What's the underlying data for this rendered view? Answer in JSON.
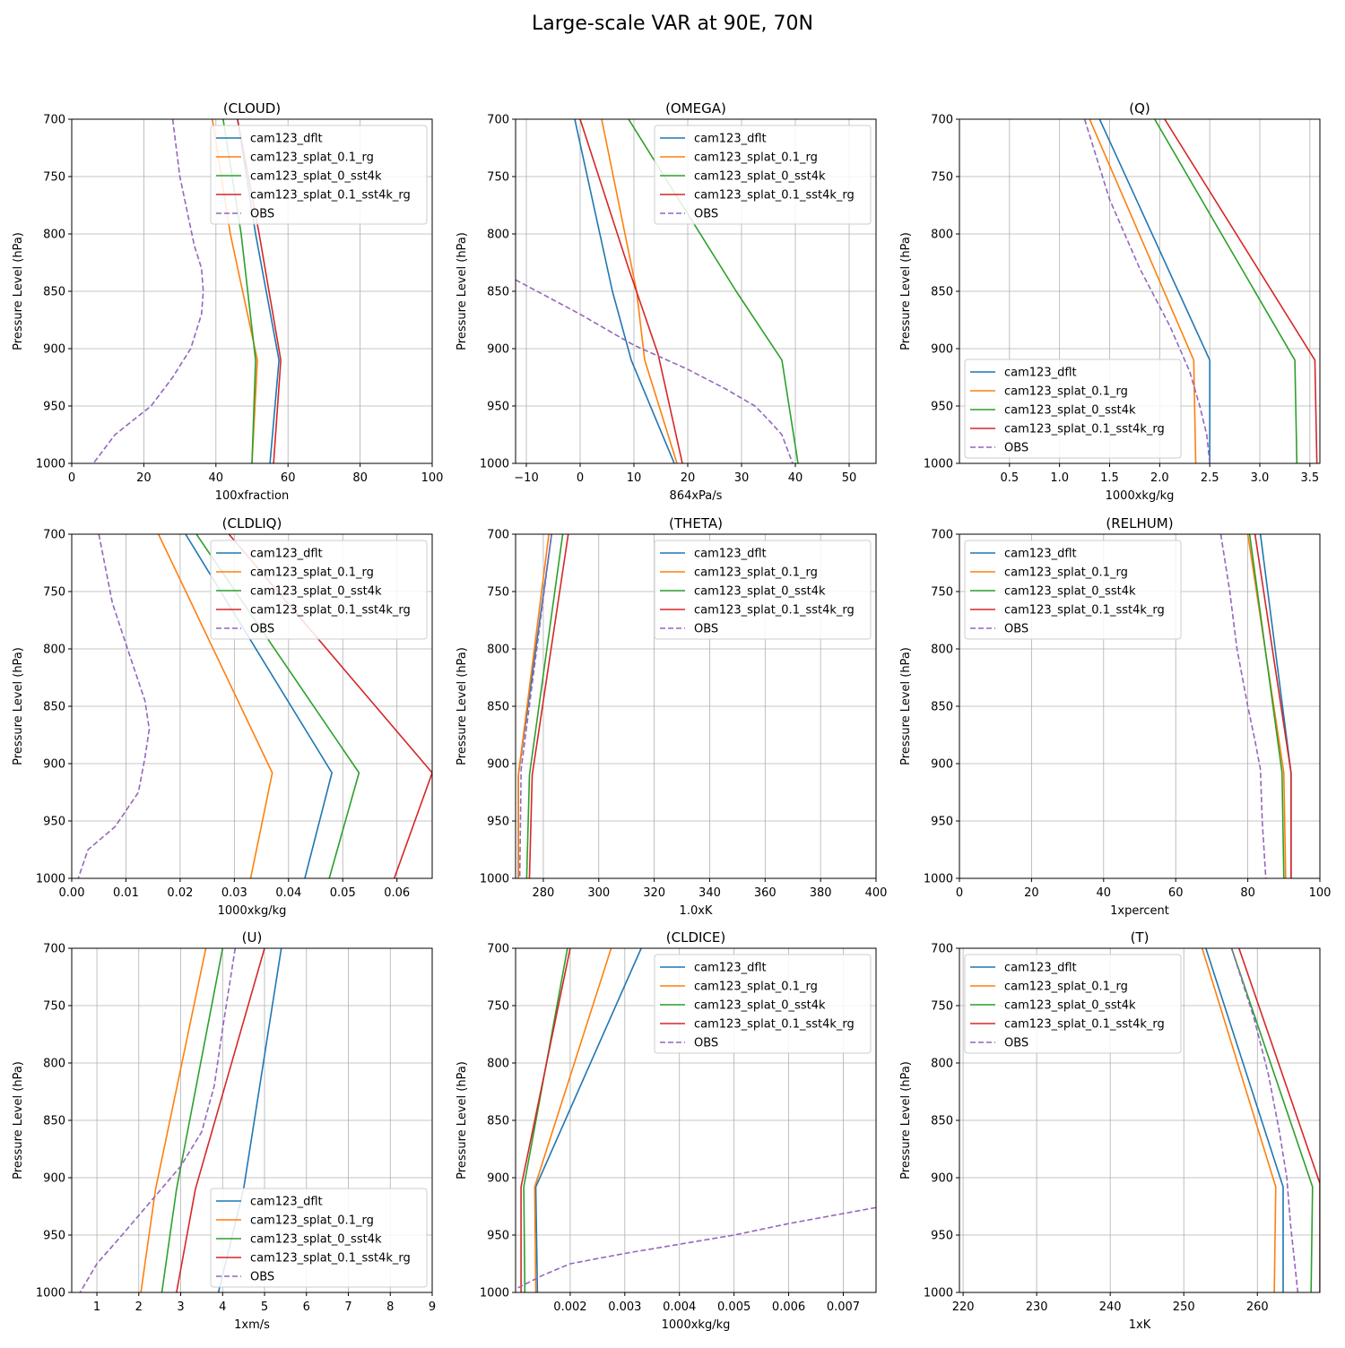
{
  "figure_title": "Large-scale VAR at 90E, 70N",
  "legend_labels": [
    "cam123_dflt",
    "cam123_splat_0.1_rg",
    "cam123_splat_0_sst4k",
    "cam123_splat_0.1_sst4k_rg",
    "OBS"
  ],
  "colors": {
    "cam123_dflt": "#1f77b4",
    "cam123_splat_0.1_rg": "#ff7f0e",
    "cam123_splat_0_sst4k": "#2ca02c",
    "cam123_splat_0.1_sst4k_rg": "#d62728",
    "OBS": "#9467bd",
    "grid": "#b0b0b0"
  },
  "chart_data": [
    {
      "type": "line",
      "title": "(CLOUD)",
      "xlabel": "100xfraction",
      "ylabel": "Pressure Level (hPa)",
      "xlim": [
        0,
        100
      ],
      "ylim": [
        1000,
        700
      ],
      "xticks": [
        0,
        20,
        40,
        60,
        80,
        100
      ],
      "xtick_labels": [
        "0",
        "20",
        "40",
        "60",
        "80",
        "100"
      ],
      "yticks": [
        700,
        750,
        800,
        850,
        900,
        950,
        1000
      ],
      "legend": "top-right",
      "series": [
        {
          "name": "cam123_dflt",
          "x": [
            46,
            51,
            57.5,
            55
          ],
          "y": [
            700,
            800,
            910,
            1000
          ]
        },
        {
          "name": "cam123_splat_0.1_rg",
          "x": [
            39,
            44,
            51.5,
            50
          ],
          "y": [
            700,
            800,
            910,
            1000
          ]
        },
        {
          "name": "cam123_splat_0_sst4k",
          "x": [
            42,
            47,
            51,
            50
          ],
          "y": [
            700,
            800,
            910,
            1000
          ]
        },
        {
          "name": "cam123_splat_0.1_sst4k_rg",
          "x": [
            46,
            52,
            58,
            56
          ],
          "y": [
            700,
            800,
            910,
            1000
          ]
        },
        {
          "name": "OBS",
          "x": [
            28,
            30,
            32,
            34,
            36,
            36.5,
            36,
            33,
            28,
            22,
            12,
            6
          ],
          "y": [
            700,
            750,
            780,
            810,
            830,
            850,
            870,
            900,
            925,
            950,
            975,
            1000
          ]
        }
      ]
    },
    {
      "type": "line",
      "title": "(OMEGA)",
      "xlabel": "864xPa/s",
      "ylabel": "Pressure Level (hPa)",
      "xlim": [
        -12,
        55
      ],
      "ylim": [
        1000,
        700
      ],
      "xticks": [
        -10,
        0,
        10,
        20,
        30,
        40,
        50
      ],
      "xtick_labels": [
        "−10",
        "0",
        "10",
        "20",
        "30",
        "40",
        "50"
      ],
      "yticks": [
        700,
        750,
        800,
        850,
        900,
        950,
        1000
      ],
      "legend": "top-right",
      "series": [
        {
          "name": "cam123_dflt",
          "x": [
            -1,
            6,
            9.5,
            17.5
          ],
          "y": [
            700,
            850,
            910,
            1000
          ]
        },
        {
          "name": "cam123_splat_0.1_rg",
          "x": [
            4,
            10.5,
            12,
            18
          ],
          "y": [
            700,
            850,
            910,
            1000
          ]
        },
        {
          "name": "cam123_splat_0_sst4k",
          "x": [
            9,
            29,
            37.5,
            40.5
          ],
          "y": [
            700,
            850,
            910,
            1000
          ]
        },
        {
          "name": "cam123_splat_0.1_sst4k_rg",
          "x": [
            0,
            9,
            14.5,
            19
          ],
          "y": [
            700,
            830,
            905,
            1000
          ]
        },
        {
          "name": "OBS",
          "x": [
            -12,
            -10,
            0,
            10,
            20,
            27,
            32.5,
            35,
            37.5,
            39.5
          ],
          "y": [
            840,
            845,
            870,
            897,
            918,
            935,
            950,
            962,
            975,
            1000
          ]
        }
      ]
    },
    {
      "type": "line",
      "title": "(Q)",
      "xlabel": "1000xkg/kg",
      "ylabel": "Pressure Level (hPa)",
      "xlim": [
        0,
        3.6
      ],
      "ylim": [
        1000,
        700
      ],
      "xticks": [
        0.5,
        1.0,
        1.5,
        2.0,
        2.5,
        3.0,
        3.5
      ],
      "xtick_labels": [
        "0.5",
        "1.0",
        "1.5",
        "2.0",
        "2.5",
        "3.0",
        "3.5"
      ],
      "yticks": [
        700,
        750,
        800,
        850,
        900,
        950,
        1000
      ],
      "legend": "lower-left",
      "series": [
        {
          "name": "cam123_dflt",
          "x": [
            1.4,
            2.5,
            2.5
          ],
          "y": [
            700,
            910,
            1000
          ]
        },
        {
          "name": "cam123_splat_0.1_rg",
          "x": [
            1.3,
            2.34,
            2.36
          ],
          "y": [
            700,
            910,
            1000
          ]
        },
        {
          "name": "cam123_splat_0_sst4k",
          "x": [
            1.95,
            3.35,
            3.37
          ],
          "y": [
            700,
            910,
            1000
          ]
        },
        {
          "name": "cam123_splat_0.1_sst4k_rg",
          "x": [
            2.05,
            3.55,
            3.57
          ],
          "y": [
            700,
            910,
            1000
          ]
        },
        {
          "name": "OBS",
          "x": [
            1.25,
            1.5,
            1.8,
            2.1,
            2.3,
            2.4,
            2.47,
            2.5
          ],
          "y": [
            700,
            770,
            830,
            880,
            920,
            950,
            975,
            1000
          ]
        }
      ]
    },
    {
      "type": "line",
      "title": "(CLDLIQ)",
      "xlabel": "1000xkg/kg",
      "ylabel": "Pressure Level (hPa)",
      "xlim": [
        0,
        0.0665
      ],
      "ylim": [
        1000,
        700
      ],
      "xticks": [
        0,
        0.01,
        0.02,
        0.03,
        0.04,
        0.05,
        0.06
      ],
      "xtick_labels": [
        "0.00",
        "0.01",
        "0.02",
        "0.03",
        "0.04",
        "0.05",
        "0.06"
      ],
      "yticks": [
        700,
        750,
        800,
        850,
        900,
        950,
        1000
      ],
      "legend": "top-right",
      "series": [
        {
          "name": "cam123_dflt",
          "x": [
            0.021,
            0.048,
            0.043
          ],
          "y": [
            700,
            908,
            1000
          ]
        },
        {
          "name": "cam123_splat_0.1_rg",
          "x": [
            0.016,
            0.037,
            0.033
          ],
          "y": [
            700,
            908,
            1000
          ]
        },
        {
          "name": "cam123_splat_0_sst4k",
          "x": [
            0.023,
            0.053,
            0.0475
          ],
          "y": [
            700,
            908,
            1000
          ]
        },
        {
          "name": "cam123_splat_0.1_sst4k_rg",
          "x": [
            0.029,
            0.0665,
            0.0595
          ],
          "y": [
            700,
            908,
            1000
          ]
        },
        {
          "name": "OBS",
          "x": [
            0.005,
            0.0075,
            0.011,
            0.0135,
            0.0143,
            0.0135,
            0.0123,
            0.008,
            0.003,
            0.0012
          ],
          "y": [
            700,
            760,
            810,
            845,
            870,
            895,
            925,
            955,
            975,
            1000
          ]
        }
      ]
    },
    {
      "type": "line",
      "title": "(THETA)",
      "xlabel": "1.0xK",
      "ylabel": "Pressure Level (hPa)",
      "xlim": [
        270,
        400
      ],
      "ylim": [
        1000,
        700
      ],
      "xticks": [
        280,
        300,
        320,
        340,
        360,
        380,
        400
      ],
      "xtick_labels": [
        "280",
        "300",
        "320",
        "340",
        "360",
        "380",
        "400"
      ],
      "yticks": [
        700,
        750,
        800,
        850,
        900,
        950,
        1000
      ],
      "legend": "top-right",
      "series": [
        {
          "name": "cam123_dflt",
          "x": [
            283,
            271,
            271
          ],
          "y": [
            700,
            910,
            1000
          ]
        },
        {
          "name": "cam123_splat_0.1_rg",
          "x": [
            282,
            271,
            271
          ],
          "y": [
            700,
            910,
            1000
          ]
        },
        {
          "name": "cam123_splat_0_sst4k",
          "x": [
            287,
            275,
            274
          ],
          "y": [
            700,
            910,
            1000
          ]
        },
        {
          "name": "cam123_splat_0.1_sst4k_rg",
          "x": [
            289,
            276,
            275
          ],
          "y": [
            700,
            910,
            1000
          ]
        },
        {
          "name": "OBS",
          "x": [
            283,
            272,
            271.5
          ],
          "y": [
            700,
            905,
            1000
          ]
        }
      ]
    },
    {
      "type": "line",
      "title": "(RELHUM)",
      "xlabel": "1xpercent",
      "ylabel": "Pressure Level (hPa)",
      "xlim": [
        0,
        100
      ],
      "ylim": [
        1000,
        700
      ],
      "xticks": [
        0,
        20,
        40,
        60,
        80,
        100
      ],
      "xtick_labels": [
        "0",
        "20",
        "40",
        "60",
        "80",
        "100"
      ],
      "yticks": [
        700,
        750,
        800,
        850,
        900,
        950,
        1000
      ],
      "legend": "top-left",
      "series": [
        {
          "name": "cam123_dflt",
          "x": [
            83.5,
            92,
            92
          ],
          "y": [
            700,
            908,
            1000
          ]
        },
        {
          "name": "cam123_splat_0.1_rg",
          "x": [
            80,
            90,
            90.5
          ],
          "y": [
            700,
            908,
            1000
          ]
        },
        {
          "name": "cam123_splat_0_sst4k",
          "x": [
            80.5,
            89.5,
            90
          ],
          "y": [
            700,
            908,
            1000
          ]
        },
        {
          "name": "cam123_splat_0.1_sst4k_rg",
          "x": [
            82,
            92,
            92
          ],
          "y": [
            700,
            908,
            1000
          ]
        },
        {
          "name": "OBS",
          "x": [
            72.5,
            75,
            77,
            80,
            82,
            83.5,
            84,
            85
          ],
          "y": [
            700,
            750,
            800,
            850,
            880,
            905,
            950,
            1000
          ]
        }
      ]
    },
    {
      "type": "line",
      "title": "(U)",
      "xlabel": "1xm/s",
      "ylabel": "Pressure Level (hPa)",
      "xlim": [
        0.4,
        9
      ],
      "ylim": [
        1000,
        700
      ],
      "xticks": [
        1,
        2,
        3,
        4,
        5,
        6,
        7,
        8,
        9
      ],
      "xtick_labels": [
        "1",
        "2",
        "3",
        "4",
        "5",
        "6",
        "7",
        "8",
        "9"
      ],
      "yticks": [
        700,
        750,
        800,
        850,
        900,
        950,
        1000
      ],
      "legend": "lower-right",
      "series": [
        {
          "name": "cam123_dflt",
          "x": [
            5.4,
            4.5,
            3.9
          ],
          "y": [
            700,
            910,
            1000
          ]
        },
        {
          "name": "cam123_splat_0.1_rg",
          "x": [
            3.6,
            2.4,
            2.05
          ],
          "y": [
            700,
            910,
            1000
          ]
        },
        {
          "name": "cam123_splat_0_sst4k",
          "x": [
            4.0,
            2.9,
            2.55
          ],
          "y": [
            700,
            910,
            1000
          ]
        },
        {
          "name": "cam123_splat_0.1_sst4k_rg",
          "x": [
            5.0,
            3.35,
            2.9
          ],
          "y": [
            700,
            910,
            1000
          ]
        },
        {
          "name": "OBS",
          "x": [
            4.3,
            4.0,
            3.8,
            3.5,
            3.0,
            2.3,
            1.6,
            1.0,
            0.6
          ],
          "y": [
            700,
            770,
            820,
            860,
            890,
            920,
            950,
            975,
            1000
          ]
        }
      ]
    },
    {
      "type": "line",
      "title": "(CLDICE)",
      "xlabel": "1000xkg/kg",
      "ylabel": "Pressure Level (hPa)",
      "xlim": [
        0.001,
        0.0076
      ],
      "ylim": [
        1000,
        700
      ],
      "xticks": [
        0.002,
        0.003,
        0.004,
        0.005,
        0.006,
        0.007
      ],
      "xtick_labels": [
        "0.002",
        "0.003",
        "0.004",
        "0.005",
        "0.006",
        "0.007"
      ],
      "yticks": [
        700,
        750,
        800,
        850,
        900,
        950,
        1000
      ],
      "legend": "top-right",
      "series": [
        {
          "name": "cam123_dflt",
          "x": [
            0.0033,
            0.00137,
            0.0014
          ],
          "y": [
            700,
            908,
            1000
          ]
        },
        {
          "name": "cam123_splat_0.1_rg",
          "x": [
            0.00275,
            0.00135,
            0.00137
          ],
          "y": [
            700,
            908,
            1000
          ]
        },
        {
          "name": "cam123_splat_0_sst4k",
          "x": [
            0.00195,
            0.00115,
            0.00117
          ],
          "y": [
            700,
            908,
            1000
          ]
        },
        {
          "name": "cam123_splat_0.1_sst4k_rg",
          "x": [
            0.002,
            0.0011,
            0.0011
          ],
          "y": [
            700,
            908,
            1000
          ]
        },
        {
          "name": "OBS",
          "x": [
            0.0076,
            0.006,
            0.005,
            0.004,
            0.003,
            0.002,
            0.0015,
            0.001
          ],
          "y": [
            926,
            940,
            950,
            958,
            966,
            975,
            985,
            997
          ]
        }
      ]
    },
    {
      "type": "line",
      "title": "(T)",
      "xlabel": "1xK",
      "ylabel": "Pressure Level (hPa)",
      "xlim": [
        219.5,
        268.5
      ],
      "ylim": [
        1000,
        700
      ],
      "xticks": [
        220,
        230,
        240,
        250,
        260
      ],
      "xtick_labels": [
        "220",
        "230",
        "240",
        "250",
        "260"
      ],
      "yticks": [
        700,
        750,
        800,
        850,
        900,
        950,
        1000
      ],
      "legend": "top-left",
      "series": [
        {
          "name": "cam123_dflt",
          "x": [
            253,
            263.5,
            263.5
          ],
          "y": [
            700,
            908,
            1000
          ]
        },
        {
          "name": "cam123_splat_0.1_rg",
          "x": [
            252.5,
            262.5,
            262.3
          ],
          "y": [
            700,
            908,
            1000
          ]
        },
        {
          "name": "cam123_splat_0_sst4k",
          "x": [
            256.5,
            267.5,
            267.3
          ],
          "y": [
            700,
            908,
            1000
          ]
        },
        {
          "name": "cam123_splat_0.1_sst4k_rg",
          "x": [
            257.5,
            268.5,
            268.5
          ],
          "y": [
            700,
            905,
            1000
          ]
        },
        {
          "name": "OBS",
          "x": [
            256.5,
            259.5,
            261.5,
            263,
            264,
            264.5,
            265,
            265.5
          ],
          "y": [
            700,
            760,
            810,
            860,
            900,
            940,
            970,
            1000
          ]
        }
      ]
    }
  ]
}
